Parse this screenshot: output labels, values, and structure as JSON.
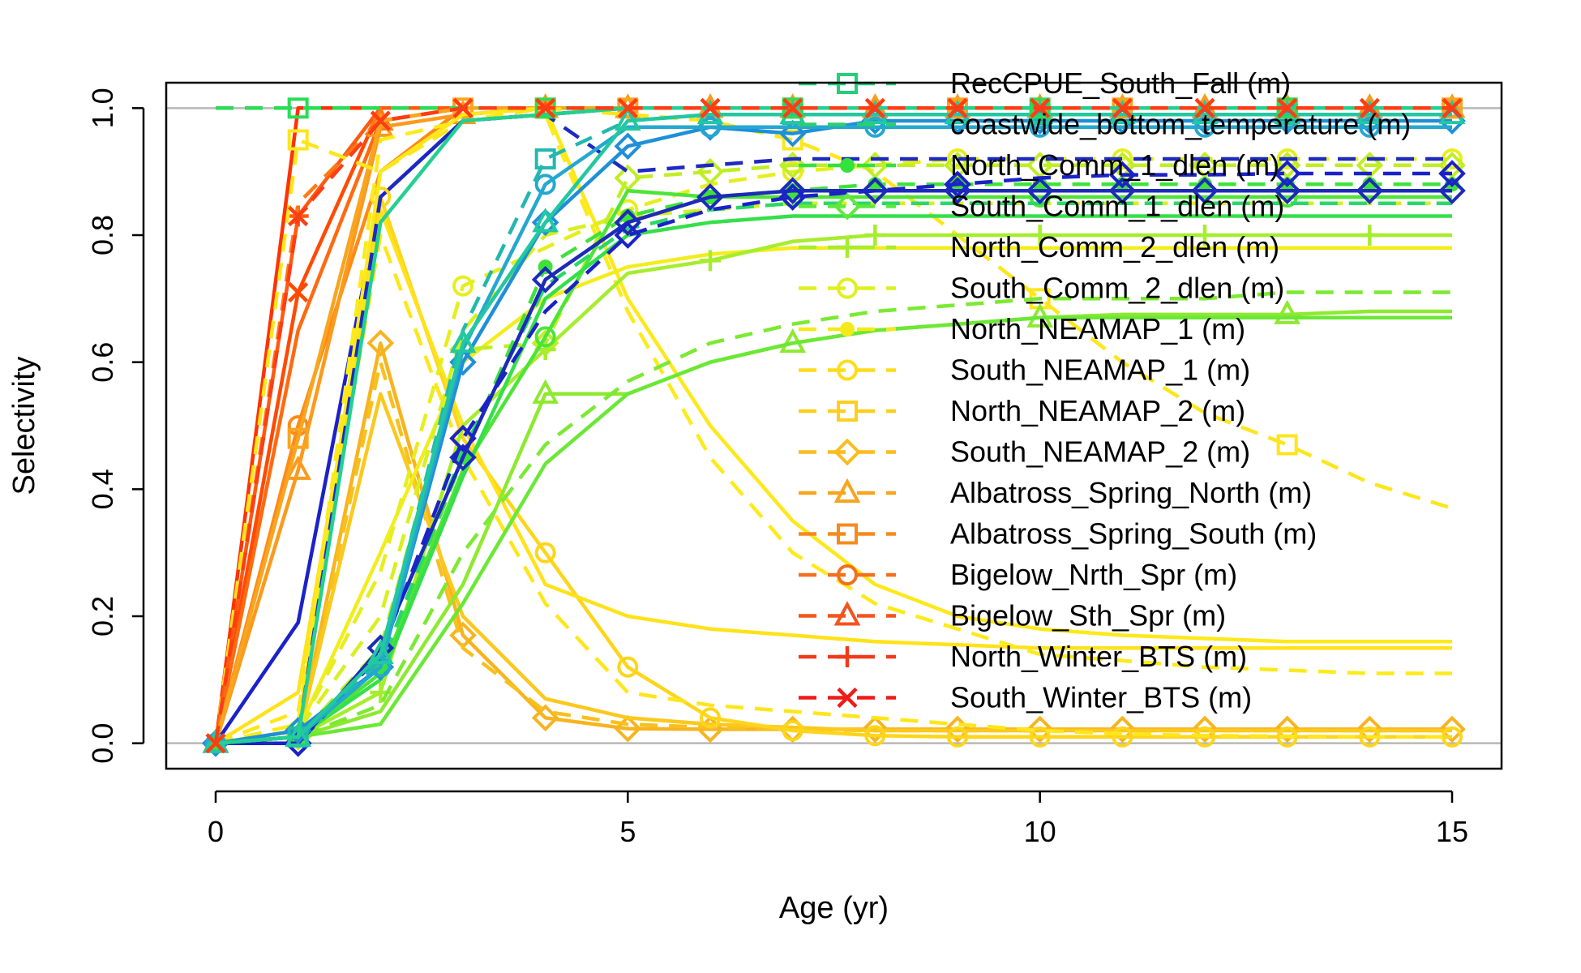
{
  "chart_data": {
    "type": "line",
    "title": "",
    "xlabel": "Age (yr)",
    "ylabel": "Selectivity",
    "xlim": [
      -0.6,
      15.6
    ],
    "ylim": [
      -0.04,
      1.04
    ],
    "xticks": [
      0,
      5,
      10,
      15
    ],
    "yticks": [
      0.0,
      0.2,
      0.4,
      0.6,
      0.8,
      1.0
    ],
    "xtick_labels": [
      "0",
      "5",
      "10",
      "15"
    ],
    "ytick_labels": [
      "0.0",
      "0.2",
      "0.4",
      "0.6",
      "0.8",
      "1.0"
    ],
    "reference_lines": [
      0,
      1
    ],
    "grid": false,
    "legend_position": "top-right",
    "legend": [
      {
        "name": "RecCPUE_South_Fall (m)",
        "color": "#22d07a",
        "dash": true,
        "marker": "square"
      },
      {
        "name": "coastwide_bottom_temperature (m)",
        "color": "#2bd06a",
        "dash": true,
        "marker": "none"
      },
      {
        "name": "North_Comm_1_dlen (m)",
        "color": "#33e23a",
        "dash": true,
        "marker": "dot"
      },
      {
        "name": "South_Comm_1_dlen (m)",
        "color": "#5fe93b",
        "dash": true,
        "marker": "diamond"
      },
      {
        "name": "North_Comm_2_dlen (m)",
        "color": "#a6ed2e",
        "dash": true,
        "marker": "plus"
      },
      {
        "name": "South_Comm_2_dlen (m)",
        "color": "#dff020",
        "dash": true,
        "marker": "circle"
      },
      {
        "name": "North_NEAMAP_1 (m)",
        "color": "#f4ea1a",
        "dash": true,
        "marker": "dot"
      },
      {
        "name": "South_NEAMAP_1 (m)",
        "color": "#fddc1b",
        "dash": true,
        "marker": "circle"
      },
      {
        "name": "North_NEAMAP_2 (m)",
        "color": "#fdcf1c",
        "dash": true,
        "marker": "square"
      },
      {
        "name": "South_NEAMAP_2 (m)",
        "color": "#fbbd1e",
        "dash": true,
        "marker": "diamond"
      },
      {
        "name": "Albatross_Spring_North (m)",
        "color": "#f8a51f",
        "dash": true,
        "marker": "triangle"
      },
      {
        "name": "Albatross_Spring_South (m)",
        "color": "#f58a1f",
        "dash": true,
        "marker": "square"
      },
      {
        "name": "Bigelow_Nrth_Spr (m)",
        "color": "#f36f1e",
        "dash": true,
        "marker": "circle"
      },
      {
        "name": "Bigelow_Sth_Spr (m)",
        "color": "#f2541c",
        "dash": true,
        "marker": "triangle"
      },
      {
        "name": "North_Winter_BTS (m)",
        "color": "#f03a1a",
        "dash": true,
        "marker": "plus"
      },
      {
        "name": "South_Winter_BTS (m)",
        "color": "#ef1c18",
        "dash": true,
        "marker": "cross"
      }
    ],
    "x": [
      0,
      1,
      2,
      3,
      4,
      5,
      6,
      7,
      8,
      9,
      10,
      11,
      12,
      13,
      14,
      15
    ],
    "series": [
      {
        "color": "#ff3300",
        "dash": false,
        "marker": "none",
        "values": [
          0,
          1,
          1,
          1,
          1,
          1,
          1,
          1,
          1,
          1,
          1,
          1,
          1,
          1,
          1,
          1
        ]
      },
      {
        "color": "#ff4a00",
        "dash": false,
        "marker": "cross",
        "values": [
          0,
          0.71,
          1,
          1,
          1,
          1,
          1,
          1,
          1,
          1,
          1,
          1,
          1,
          1,
          1,
          1
        ]
      },
      {
        "color": "#ff5a10",
        "dash": false,
        "marker": "plus",
        "values": [
          0,
          0.83,
          1,
          1,
          1,
          1,
          1,
          1,
          1,
          1,
          1,
          1,
          1,
          1,
          1,
          1
        ]
      },
      {
        "color": "#ff6a10",
        "dash": false,
        "marker": "none",
        "values": [
          0,
          0.65,
          0.98,
          1,
          1,
          1,
          1,
          1,
          1,
          1,
          1,
          1,
          1,
          1,
          1,
          1
        ]
      },
      {
        "color": "#ff7a14",
        "dash": true,
        "marker": "triangle",
        "values": [
          0,
          0.85,
          0.98,
          1,
          1,
          1,
          1,
          1,
          1,
          1,
          1,
          1,
          1,
          1,
          1,
          1
        ]
      },
      {
        "color": "#ff8a18",
        "dash": false,
        "marker": "circle",
        "values": [
          0,
          0.5,
          0.9,
          1,
          1,
          1,
          1,
          1,
          1,
          1,
          1,
          1,
          1,
          1,
          1,
          1
        ]
      },
      {
        "color": "#fb9a1c",
        "dash": false,
        "marker": "triangle",
        "values": [
          0,
          0.43,
          0.97,
          0.99,
          1,
          1,
          1,
          1,
          1,
          1,
          1,
          1,
          1,
          1,
          1,
          1
        ]
      },
      {
        "color": "#f8a51f",
        "dash": false,
        "marker": "square",
        "values": [
          0,
          0.48,
          0.98,
          1,
          1,
          1,
          1,
          1,
          1,
          1,
          1,
          1,
          1,
          1,
          1,
          1
        ]
      },
      {
        "color": "#1a22c8",
        "dash": false,
        "marker": "none",
        "values": [
          0,
          0.19,
          0.86,
          0.98,
          0.99,
          1,
          1,
          1,
          1,
          1,
          1,
          1,
          1,
          1,
          1,
          1
        ]
      },
      {
        "color": "#f7b41f",
        "dash": false,
        "marker": "diamond",
        "values": [
          0,
          0.01,
          0.63,
          0.17,
          0.04,
          0.023,
          0.022,
          0.022,
          0.022,
          0.022,
          0.022,
          0.022,
          0.022,
          0.022,
          0.022,
          0.022
        ]
      },
      {
        "color": "#f8c01e",
        "dash": true,
        "marker": "none",
        "values": [
          0,
          0.01,
          0.6,
          0.15,
          0.05,
          0.03,
          0.025,
          0.022,
          0.02,
          0.02,
          0.02,
          0.02,
          0.02,
          0.02,
          0.02,
          0.02
        ]
      },
      {
        "color": "#fbc81d",
        "dash": false,
        "marker": "none",
        "values": [
          0,
          0.01,
          0.55,
          0.2,
          0.07,
          0.04,
          0.03,
          0.025,
          0.02,
          0.02,
          0.02,
          0.02,
          0.02,
          0.02,
          0.02,
          0.02
        ]
      },
      {
        "color": "#fdd51b",
        "dash": false,
        "marker": "circle",
        "values": [
          0,
          0.01,
          0.86,
          0.48,
          0.3,
          0.12,
          0.04,
          0.02,
          0.012,
          0.01,
          0.01,
          0.01,
          0.01,
          0.01,
          0.01,
          0.01
        ]
      },
      {
        "color": "#ffe21a",
        "dash": false,
        "marker": "none",
        "values": [
          0,
          0.08,
          0.84,
          0.5,
          0.25,
          0.2,
          0.18,
          0.17,
          0.16,
          0.155,
          0.15,
          0.15,
          0.15,
          0.15,
          0.15,
          0.15
        ]
      },
      {
        "color": "#ffe61a",
        "dash": true,
        "marker": "none",
        "values": [
          0,
          0.05,
          0.8,
          0.45,
          0.22,
          0.08,
          0.06,
          0.05,
          0.04,
          0.03,
          0.02,
          0.015,
          0.012,
          0.011,
          0.01,
          0.01
        ]
      },
      {
        "color": "#fde81a",
        "dash": false,
        "marker": "none",
        "values": [
          0,
          0.02,
          0.9,
          0.99,
          1,
          0.7,
          0.5,
          0.35,
          0.25,
          0.2,
          0.18,
          0.17,
          0.165,
          0.16,
          0.16,
          0.16
        ]
      },
      {
        "color": "#fdea1a",
        "dash": true,
        "marker": "none",
        "values": [
          0,
          0.03,
          0.95,
          0.98,
          0.99,
          0.68,
          0.45,
          0.3,
          0.22,
          0.18,
          0.14,
          0.13,
          0.12,
          0.115,
          0.11,
          0.11
        ]
      },
      {
        "color": "#fde61a",
        "dash": true,
        "marker": "square",
        "values": [
          0,
          0.95,
          0.9,
          0.98,
          1,
          0.99,
          0.98,
          0.95,
          0.9,
          0.8,
          0.7,
          0.6,
          0.52,
          0.47,
          0.41,
          0.37
        ]
      },
      {
        "color": "#f2ed1c",
        "dash": false,
        "marker": "none",
        "values": [
          0,
          0.02,
          0.3,
          0.6,
          0.7,
          0.75,
          0.77,
          0.78,
          0.78,
          0.78,
          0.78,
          0.78,
          0.78,
          0.78,
          0.78,
          0.78
        ]
      },
      {
        "color": "#e6ee1e",
        "dash": true,
        "marker": "circle",
        "values": [
          0,
          0.02,
          0.27,
          0.72,
          0.78,
          0.84,
          0.88,
          0.9,
          0.91,
          0.92,
          0.92,
          0.92,
          0.92,
          0.92,
          0.92,
          0.92
        ]
      },
      {
        "color": "#d8ef20",
        "dash": true,
        "marker": "none",
        "values": [
          0,
          0.02,
          0.2,
          0.65,
          0.8,
          0.83,
          0.84,
          0.85,
          0.85,
          0.85,
          0.85,
          0.85,
          0.85,
          0.85,
          0.85,
          0.85
        ]
      },
      {
        "color": "#c0ee24",
        "dash": true,
        "marker": "diamond",
        "values": [
          0,
          0.01,
          0.15,
          0.62,
          0.63,
          0.89,
          0.9,
          0.91,
          0.91,
          0.91,
          0.91,
          0.91,
          0.91,
          0.91,
          0.91,
          0.91
        ]
      },
      {
        "color": "#a6ed2e",
        "dash": false,
        "marker": "plus",
        "values": [
          0,
          0.01,
          0.08,
          0.5,
          0.62,
          0.74,
          0.76,
          0.79,
          0.8,
          0.8,
          0.8,
          0.8,
          0.8,
          0.8,
          0.8,
          0.8
        ]
      },
      {
        "color": "#8ee931",
        "dash": false,
        "marker": "triangle",
        "values": [
          0,
          0.01,
          0.05,
          0.25,
          0.55,
          0.55,
          0.6,
          0.63,
          0.65,
          0.66,
          0.67,
          0.675,
          0.675,
          0.675,
          0.68,
          0.68
        ]
      },
      {
        "color": "#7ce933",
        "dash": true,
        "marker": "none",
        "values": [
          0,
          0.01,
          0.06,
          0.3,
          0.47,
          0.57,
          0.63,
          0.66,
          0.68,
          0.69,
          0.7,
          0.7,
          0.7,
          0.71,
          0.71,
          0.71
        ]
      },
      {
        "color": "#6ae835",
        "dash": false,
        "marker": "none",
        "values": [
          0,
          0.01,
          0.03,
          0.22,
          0.44,
          0.55,
          0.6,
          0.63,
          0.65,
          0.66,
          0.67,
          0.67,
          0.67,
          0.67,
          0.67,
          0.67
        ]
      },
      {
        "color": "#4ee437",
        "dash": false,
        "marker": "circle",
        "values": [
          0,
          0.01,
          0.11,
          0.43,
          0.64,
          0.87,
          0.86,
          0.86,
          0.86,
          0.86,
          0.86,
          0.86,
          0.86,
          0.86,
          0.86,
          0.86
        ]
      },
      {
        "color": "#3fe23a",
        "dash": true,
        "marker": "dot",
        "values": [
          0,
          0.01,
          0.12,
          0.45,
          0.75,
          0.83,
          0.86,
          0.87,
          0.88,
          0.88,
          0.88,
          0.88,
          0.88,
          0.88,
          0.88,
          0.88
        ]
      },
      {
        "color": "#36df4a",
        "dash": false,
        "marker": "none",
        "values": [
          0,
          0.01,
          0.1,
          0.42,
          0.7,
          0.8,
          0.82,
          0.83,
          0.83,
          0.83,
          0.83,
          0.83,
          0.83,
          0.83,
          0.83,
          0.83
        ]
      },
      {
        "color": "#2ad86a",
        "dash": true,
        "marker": "none",
        "values": [
          0,
          0.01,
          0.12,
          0.46,
          0.72,
          0.81,
          0.84,
          0.85,
          0.85,
          0.85,
          0.85,
          0.85,
          0.85,
          0.85,
          0.85,
          0.85
        ]
      },
      {
        "color": "#1c2bb8",
        "dash": false,
        "marker": "diamond",
        "values": [
          0,
          0,
          0.15,
          0.45,
          0.73,
          0.82,
          0.86,
          0.87,
          0.87,
          0.87,
          0.87,
          0.87,
          0.87,
          0.87,
          0.87,
          0.87
        ]
      },
      {
        "color": "#1a22c8",
        "dash": true,
        "marker": "diamond",
        "values": [
          0,
          0,
          0.14,
          0.48,
          0.68,
          0.8,
          0.84,
          0.86,
          0.87,
          0.88,
          0.89,
          0.895,
          0.895,
          0.897,
          0.897,
          0.897
        ]
      },
      {
        "color": "#1e2ac0",
        "dash": true,
        "marker": "none",
        "values": [
          0,
          0.01,
          0.86,
          0.98,
          0.99,
          0.9,
          0.91,
          0.92,
          0.92,
          0.92,
          0.92,
          0.92,
          0.92,
          0.92,
          0.92,
          0.92
        ]
      },
      {
        "color": "#1f8fd8",
        "dash": false,
        "marker": "diamond",
        "values": [
          0,
          0.02,
          0.12,
          0.6,
          0.82,
          0.94,
          0.97,
          0.96,
          0.98,
          0.98,
          0.98,
          0.98,
          0.98,
          0.98,
          0.98,
          0.98
        ]
      },
      {
        "color": "#25a8d0",
        "dash": false,
        "marker": "circle",
        "values": [
          0,
          0.01,
          0.12,
          0.62,
          0.88,
          0.97,
          0.97,
          0.97,
          0.97,
          0.97,
          0.97,
          0.97,
          0.97,
          0.97,
          0.97,
          0.97
        ]
      },
      {
        "color": "#22b8b0",
        "dash": true,
        "marker": "square",
        "values": [
          0,
          0.01,
          0.13,
          0.65,
          0.92,
          0.98,
          0.99,
          0.99,
          0.99,
          0.99,
          0.99,
          0.99,
          0.99,
          0.99,
          0.99,
          0.99
        ]
      },
      {
        "color": "#22c8a0",
        "dash": false,
        "marker": "triangle",
        "values": [
          0,
          0.01,
          0.14,
          0.63,
          0.82,
          0.98,
          0.99,
          0.99,
          0.99,
          0.99,
          0.99,
          0.99,
          0.99,
          0.99,
          0.99,
          0.99
        ]
      },
      {
        "color": "#24d090",
        "dash": false,
        "marker": "none",
        "values": [
          0,
          0.01,
          0.82,
          0.98,
          0.99,
          1,
          1,
          1,
          1,
          1,
          1,
          1,
          1,
          1,
          1,
          1
        ]
      },
      {
        "color": "#2bdc55",
        "dash": true,
        "marker": "square",
        "values": [
          1,
          1,
          1,
          1,
          1,
          1,
          1,
          1,
          1,
          1,
          1,
          1,
          1,
          1,
          1,
          1
        ]
      },
      {
        "color": "#ff3d14",
        "dash": true,
        "marker": "cross",
        "values": [
          0,
          0.83,
          0.98,
          1,
          1,
          1,
          1,
          1,
          1,
          1,
          1,
          1,
          1,
          1,
          1,
          1
        ]
      }
    ]
  }
}
